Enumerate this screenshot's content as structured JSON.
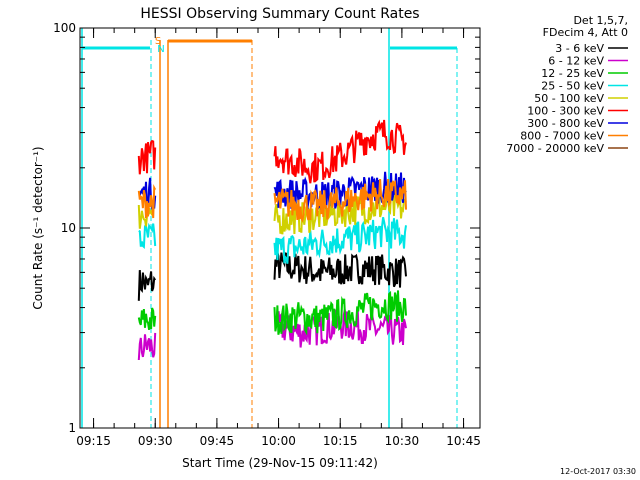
{
  "chart_data": {
    "type": "line",
    "title": "HESSI Observing Summary Count Rates",
    "xlabel": "Start Time (29-Nov-15 09:11:42)",
    "ylabel": "Count Rate (s⁻¹ detector⁻¹)",
    "y_scale": "log",
    "ylim": [
      1,
      100
    ],
    "xlim": [
      "09:11:42",
      "10:49:00"
    ],
    "x_ticks": [
      "09:15",
      "09:30",
      "09:45",
      "10:00",
      "10:15",
      "10:30",
      "10:45"
    ],
    "y_ticks": [
      "1",
      "10",
      "100"
    ],
    "grid": false,
    "legend_placement": "right",
    "legend_header": [
      "Det 1,5,7,",
      "FDecim 4, Att 0"
    ],
    "series": [
      {
        "name": "3 - 6 keV",
        "color": "#000000",
        "segments": [
          {
            "x": [
              "09:26",
              "09:27",
              "09:28",
              "09:29",
              "09:30"
            ],
            "y": [
              5.2,
              5.5,
              5.0,
              5.4,
              5.1
            ]
          },
          {
            "x": [
              "09:59",
              "10:05",
              "10:10",
              "10:15",
              "10:20",
              "10:25",
              "10:31"
            ],
            "y": [
              6.5,
              6.3,
              6.0,
              6.1,
              6.3,
              6.2,
              5.9
            ]
          }
        ]
      },
      {
        "name": "6 - 12 keV",
        "color": "#cc00cc",
        "segments": [
          {
            "x": [
              "09:26",
              "09:28",
              "09:30"
            ],
            "y": [
              2.4,
              2.6,
              2.5
            ]
          },
          {
            "x": [
              "10:00",
              "10:05",
              "10:10",
              "10:15",
              "10:20",
              "10:25",
              "10:31"
            ],
            "y": [
              3.2,
              3.0,
              3.1,
              3.3,
              3.2,
              3.1,
              3.0
            ]
          }
        ]
      },
      {
        "name": "12 - 25 keV",
        "color": "#00cc00",
        "segments": [
          {
            "x": [
              "09:26",
              "09:28",
              "09:30"
            ],
            "y": [
              3.3,
              3.5,
              3.4
            ]
          },
          {
            "x": [
              "09:59",
              "10:05",
              "10:10",
              "10:15",
              "10:20",
              "10:25",
              "10:31"
            ],
            "y": [
              3.5,
              3.6,
              3.5,
              3.7,
              3.9,
              4.2,
              4.0
            ]
          }
        ]
      },
      {
        "name": "25 - 50 keV",
        "color": "#00e5e5",
        "segments": [
          {
            "x": [
              "09:26",
              "09:28",
              "09:30"
            ],
            "y": [
              8.5,
              9.0,
              8.8
            ]
          },
          {
            "x": [
              "09:59",
              "10:05",
              "10:10",
              "10:15",
              "10:20",
              "10:25",
              "10:31"
            ],
            "y": [
              7.8,
              8.0,
              8.5,
              8.8,
              9.0,
              9.5,
              9.3
            ]
          }
        ]
      },
      {
        "name": "50 - 100 keV",
        "color": "#d0d000",
        "segments": [
          {
            "x": [
              "09:26",
              "09:28",
              "09:30"
            ],
            "y": [
              11.5,
              12.0,
              11.8
            ]
          },
          {
            "x": [
              "09:59",
              "10:05",
              "10:10",
              "10:15",
              "10:20",
              "10:25",
              "10:31"
            ],
            "y": [
              11.0,
              11.2,
              11.5,
              12.0,
              12.5,
              12.8,
              12.5
            ]
          }
        ]
      },
      {
        "name": "100 - 300 keV",
        "color": "#ff0000",
        "segments": [
          {
            "x": [
              "09:26",
              "09:27",
              "09:28",
              "09:29",
              "09:30"
            ],
            "y": [
              22,
              23,
              22.5,
              23.5,
              23
            ]
          },
          {
            "x": [
              "09:59",
              "10:02",
              "10:05",
              "10:08",
              "10:11",
              "10:14",
              "10:17",
              "10:20",
              "10:23",
              "10:26",
              "10:29",
              "10:31"
            ],
            "y": [
              24,
              22,
              21,
              20,
              20.5,
              22,
              24,
              27,
              29,
              30,
              28,
              27
            ]
          }
        ]
      },
      {
        "name": "300 - 800 keV",
        "color": "#0000dd",
        "segments": [
          {
            "x": [
              "09:26",
              "09:28",
              "09:30"
            ],
            "y": [
              14.5,
              15.0,
              14.8
            ]
          },
          {
            "x": [
              "09:59",
              "10:05",
              "10:10",
              "10:15",
              "10:20",
              "10:25",
              "10:31"
            ],
            "y": [
              15.0,
              14.8,
              14.5,
              15.0,
              15.5,
              16.0,
              15.8
            ]
          }
        ]
      },
      {
        "name": "800 - 7000 keV",
        "color": "#ff7f00",
        "segments": [
          {
            "x": [
              "09:26",
              "09:28",
              "09:30"
            ],
            "y": [
              13.2,
              13.5,
              13.4
            ]
          },
          {
            "x": [
              "09:59",
              "10:05",
              "10:10",
              "10:15",
              "10:20",
              "10:25",
              "10:31"
            ],
            "y": [
              13.5,
              13.0,
              12.8,
              13.5,
              14.2,
              14.8,
              14.5
            ]
          }
        ]
      },
      {
        "name": "7000 - 20000 keV",
        "color": "#8b4513",
        "segments": []
      }
    ],
    "annotations": [
      {
        "text": "S",
        "color": "#ff7f00"
      },
      {
        "text": "N",
        "color": "#00e5e5"
      }
    ],
    "footer": "12-Oct-2017 03:30"
  }
}
